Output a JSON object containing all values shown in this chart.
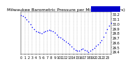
{
  "title": "Milwaukee Barometric Pressure per Minute (24 Hours)",
  "background_color": "#ffffff",
  "dot_color": "#0000ff",
  "legend_color": "#0000cc",
  "grid_color": "#aaaaaa",
  "tick_label_color": "#000000",
  "ylim": [
    29.35,
    30.25
  ],
  "yticks": [
    29.4,
    29.5,
    29.6,
    29.7,
    29.8,
    29.9,
    30.0,
    30.1,
    30.2
  ],
  "ytick_labels": [
    "29.4",
    "29.5",
    "29.6",
    "29.7",
    "29.8",
    "29.9",
    "30.0",
    "30.1",
    "30.2"
  ],
  "xlim": [
    0,
    1440
  ],
  "xticks": [
    0,
    60,
    120,
    180,
    240,
    300,
    360,
    420,
    480,
    540,
    600,
    660,
    720,
    780,
    840,
    900,
    960,
    1020,
    1080,
    1140,
    1200,
    1260,
    1320,
    1380,
    1440
  ],
  "xtick_labels": [
    "0",
    "1",
    "2",
    "3",
    "4",
    "5",
    "6",
    "7",
    "8",
    "9",
    "10",
    "11",
    "12",
    "13",
    "14",
    "15",
    "16",
    "17",
    "18",
    "19",
    "20",
    "21",
    "22",
    "23",
    ""
  ],
  "data_x": [
    0,
    30,
    60,
    90,
    120,
    150,
    180,
    210,
    240,
    270,
    300,
    330,
    360,
    390,
    420,
    450,
    480,
    510,
    540,
    570,
    600,
    630,
    660,
    690,
    720,
    750,
    780,
    810,
    840,
    870,
    900,
    930,
    960,
    990,
    1020,
    1050,
    1080,
    1110,
    1140,
    1170,
    1200,
    1230,
    1260,
    1290,
    1320,
    1350,
    1380,
    1410,
    1440
  ],
  "data_y": [
    30.18,
    30.16,
    30.13,
    30.09,
    30.04,
    29.98,
    29.93,
    29.88,
    29.83,
    29.82,
    29.8,
    29.79,
    29.82,
    29.83,
    29.85,
    29.87,
    29.85,
    29.83,
    29.8,
    29.76,
    29.72,
    29.7,
    29.68,
    29.65,
    29.62,
    29.59,
    29.55,
    29.51,
    29.47,
    29.44,
    29.42,
    29.43,
    29.45,
    29.47,
    29.44,
    29.42,
    29.4,
    29.42,
    29.45,
    29.48,
    29.52,
    29.55,
    29.6,
    29.65,
    29.72,
    29.8,
    29.88,
    29.96,
    30.02
  ],
  "title_fontsize": 4.5,
  "tick_fontsize": 3.5,
  "dot_size": 1.2
}
